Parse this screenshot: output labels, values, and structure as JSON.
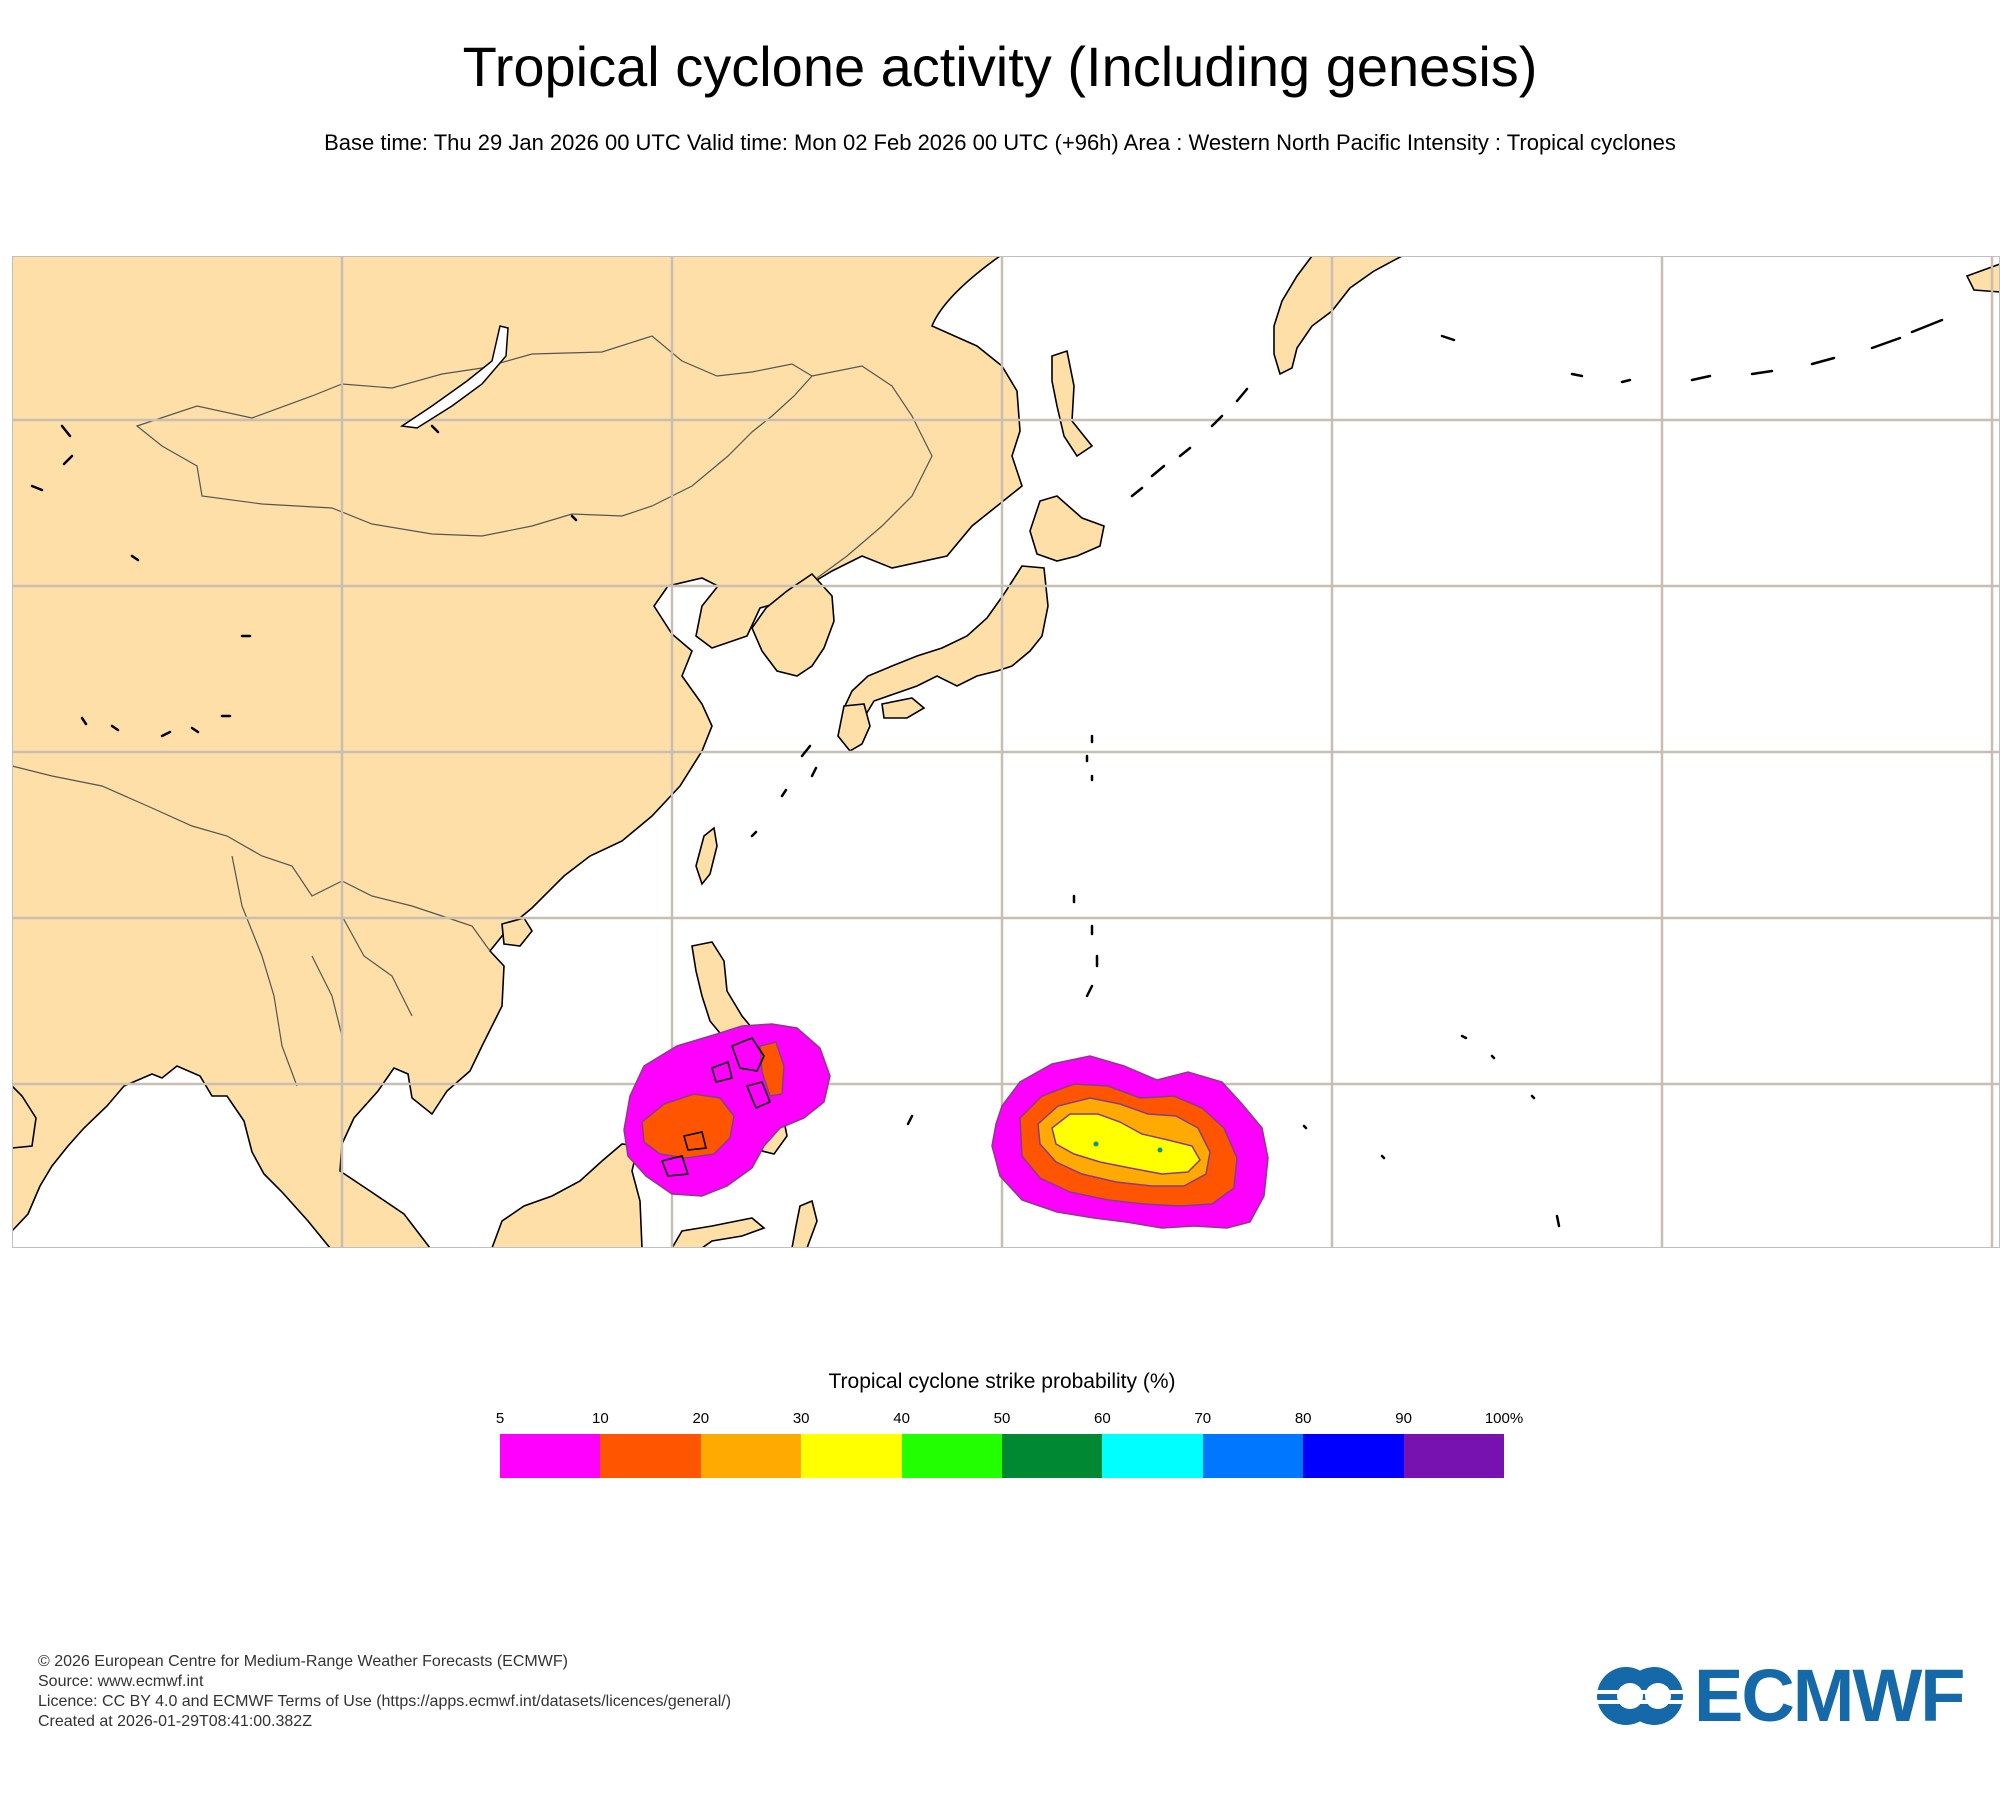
{
  "title": "Tropical cyclone activity (Including genesis)",
  "subtitle": "Base time: Thu 29 Jan 2026 00 UTC Valid time: Mon 02 Feb 2026 00 UTC (+96h) Area : Western North Pacific Intensity : Tropical cyclones",
  "map": {
    "area": "Western North Pacific",
    "land_color": "#fddfa7",
    "ocean_color": "#ffffff",
    "grid_color": "#c8beb2",
    "coastline_color": "#000000"
  },
  "probability_areas": [
    {
      "region": "Philippines / Sulu Sea",
      "max_band": "10-20"
    },
    {
      "region": "Western Pacific east of Mindanao",
      "max_band": "30-40"
    }
  ],
  "legend": {
    "title": "Tropical cyclone strike probability (%)",
    "ticks": [
      "5",
      "10",
      "20",
      "30",
      "40",
      "50",
      "60",
      "70",
      "80",
      "90",
      "100%"
    ],
    "colors": [
      "#ff00ff",
      "#ff5500",
      "#ffaa00",
      "#ffff00",
      "#22ff00",
      "#008833",
      "#00ffff",
      "#0077ff",
      "#0000ff",
      "#7711b0"
    ]
  },
  "footer": {
    "copyright": "© 2026 European Centre for Medium-Range Weather Forecasts (ECMWF)",
    "source": "Source: www.ecmwf.int",
    "licence": "Licence: CC BY 4.0 and ECMWF Terms of Use (https://apps.ecmwf.int/datasets/licences/general/)",
    "created": "Created at 2026-01-29T08:41:00.382Z"
  },
  "logo": {
    "text": "ECMWF",
    "color": "#1669a8"
  }
}
